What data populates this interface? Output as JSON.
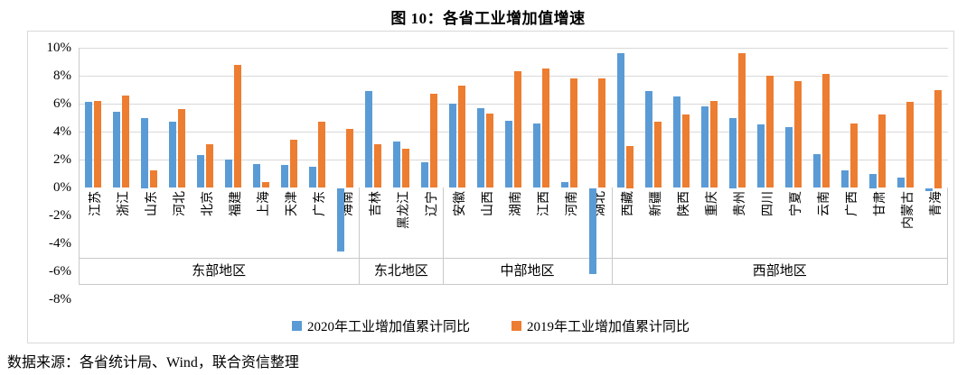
{
  "header": {
    "title": "图 10：各省工业增加值增速"
  },
  "footer": {
    "source": "数据来源：各省统计局、Wind，联合资信整理"
  },
  "chart_data": {
    "type": "bar",
    "title": "图 10：各省工业增加值增速",
    "xlabel": "",
    "ylabel": "",
    "ylim": [
      -8,
      10
    ],
    "ytick_step": 2,
    "yticks": [
      "10%",
      "8%",
      "6%",
      "4%",
      "2%",
      "0%",
      "-2%",
      "-4%",
      "-6%",
      "-8%"
    ],
    "grid": true,
    "legend_position": "bottom",
    "grid_color": "#d9d9d9",
    "groups": [
      {
        "label": "东部地区",
        "provinces": [
          "江苏",
          "浙江",
          "山东",
          "河北",
          "北京",
          "福建",
          "上海",
          "天津",
          "广东",
          "海南"
        ]
      },
      {
        "label": "东北地区",
        "provinces": [
          "吉林",
          "黑龙江",
          "辽宁"
        ]
      },
      {
        "label": "中部地区",
        "provinces": [
          "安徽",
          "山西",
          "湖南",
          "江西",
          "河南",
          "湖北"
        ]
      },
      {
        "label": "西部地区",
        "provinces": [
          "西藏",
          "新疆",
          "陕西",
          "重庆",
          "贵州",
          "四川",
          "宁夏",
          "云南",
          "广西",
          "甘肃",
          "内蒙古",
          "青海"
        ]
      }
    ],
    "categories": [
      "江苏",
      "浙江",
      "山东",
      "河北",
      "北京",
      "福建",
      "上海",
      "天津",
      "广东",
      "海南",
      "吉林",
      "黑龙江",
      "辽宁",
      "安徽",
      "山西",
      "湖南",
      "江西",
      "河南",
      "湖北",
      "西藏",
      "新疆",
      "陕西",
      "重庆",
      "贵州",
      "四川",
      "宁夏",
      "云南",
      "广西",
      "甘肃",
      "内蒙古",
      "青海"
    ],
    "series": [
      {
        "name": "2020年工业增加值累计同比",
        "color": "#5B9BD5",
        "values": [
          6.1,
          5.4,
          5.0,
          4.7,
          2.3,
          2.0,
          1.7,
          1.6,
          1.5,
          -4.5,
          6.9,
          3.3,
          1.8,
          6.0,
          5.7,
          4.8,
          4.6,
          0.4,
          -6.1,
          9.6,
          6.9,
          6.5,
          5.8,
          5.0,
          4.5,
          4.3,
          2.4,
          1.2,
          1.0,
          0.7,
          -0.2
        ]
      },
      {
        "name": "2019年工业增加值累计同比",
        "color": "#ED7D31",
        "values": [
          6.2,
          6.6,
          1.2,
          5.6,
          3.1,
          8.8,
          0.4,
          3.4,
          4.7,
          4.2,
          3.1,
          2.8,
          6.7,
          7.3,
          5.3,
          8.3,
          8.5,
          7.8,
          7.8,
          3.0,
          4.7,
          5.2,
          6.2,
          9.6,
          8.0,
          7.6,
          8.1,
          4.6,
          5.2,
          6.1,
          7.0
        ]
      }
    ]
  }
}
